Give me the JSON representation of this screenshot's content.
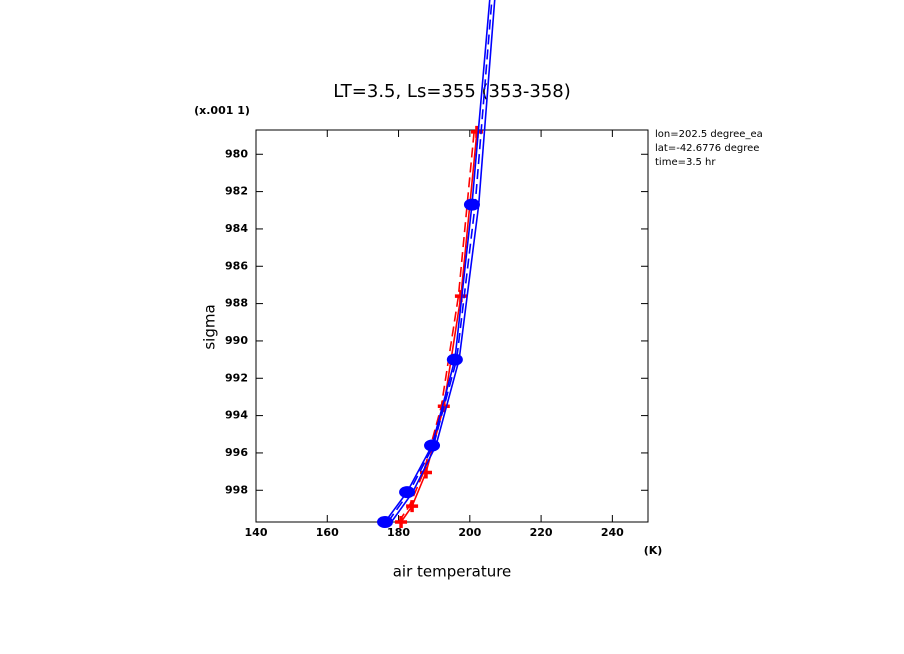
{
  "chart_data": {
    "type": "profile",
    "title": "LT=3.5, Ls=355 (353-358)",
    "y_scale_note": "(x.001 1)",
    "ylabel": "sigma",
    "xlabel": "air temperature",
    "x_unit": "(K)",
    "info": [
      "lon=202.5 degree_ea",
      "lat=-42.6776 degree",
      "time=3.5 hr"
    ],
    "xlim": [
      140,
      250
    ],
    "xticks": [
      140,
      160,
      180,
      200,
      220,
      240
    ],
    "ylim": [
      978.7,
      999.7
    ],
    "y_inverted": true,
    "yticks": [
      980,
      982,
      984,
      986,
      988,
      990,
      992,
      994,
      996,
      998
    ],
    "series": [
      {
        "color": "#ff0000",
        "dash": false,
        "marker": "cross",
        "y": [
          999.7,
          998.85,
          997.05,
          993.5,
          987.6,
          978.8
        ],
        "values": [
          180.7,
          183.8,
          187.7,
          192.7,
          197.5,
          202.0
        ]
      },
      {
        "color": "#ff0000",
        "dash": true,
        "marker": "none",
        "y": [
          999.7,
          998.85,
          997.05,
          993.5,
          987.6,
          978.8
        ],
        "values": [
          180.0,
          183.0,
          187.0,
          192.0,
          196.8,
          201.2
        ]
      },
      {
        "color": "#0000ff",
        "dash": false,
        "marker": "circle",
        "y": [
          999.7,
          998.1,
          995.6,
          991.0,
          982.7,
          971.7
        ],
        "values": [
          176.2,
          182.4,
          189.4,
          195.8,
          200.6,
          205.6
        ]
      },
      {
        "color": "#0000ff",
        "dash": false,
        "marker": "none",
        "y": [
          999.7,
          998.1,
          995.6,
          991.0,
          982.7,
          971.7
        ],
        "values": [
          178.0,
          184.0,
          190.5,
          197.0,
          202.5,
          207.0
        ]
      },
      {
        "color": "#0000ff",
        "dash": true,
        "marker": "none",
        "y": [
          999.7,
          998.1,
          995.6,
          991.0,
          982.7,
          971.7
        ],
        "values": [
          177.0,
          183.0,
          189.8,
          196.3,
          201.5,
          206.2
        ]
      }
    ]
  }
}
